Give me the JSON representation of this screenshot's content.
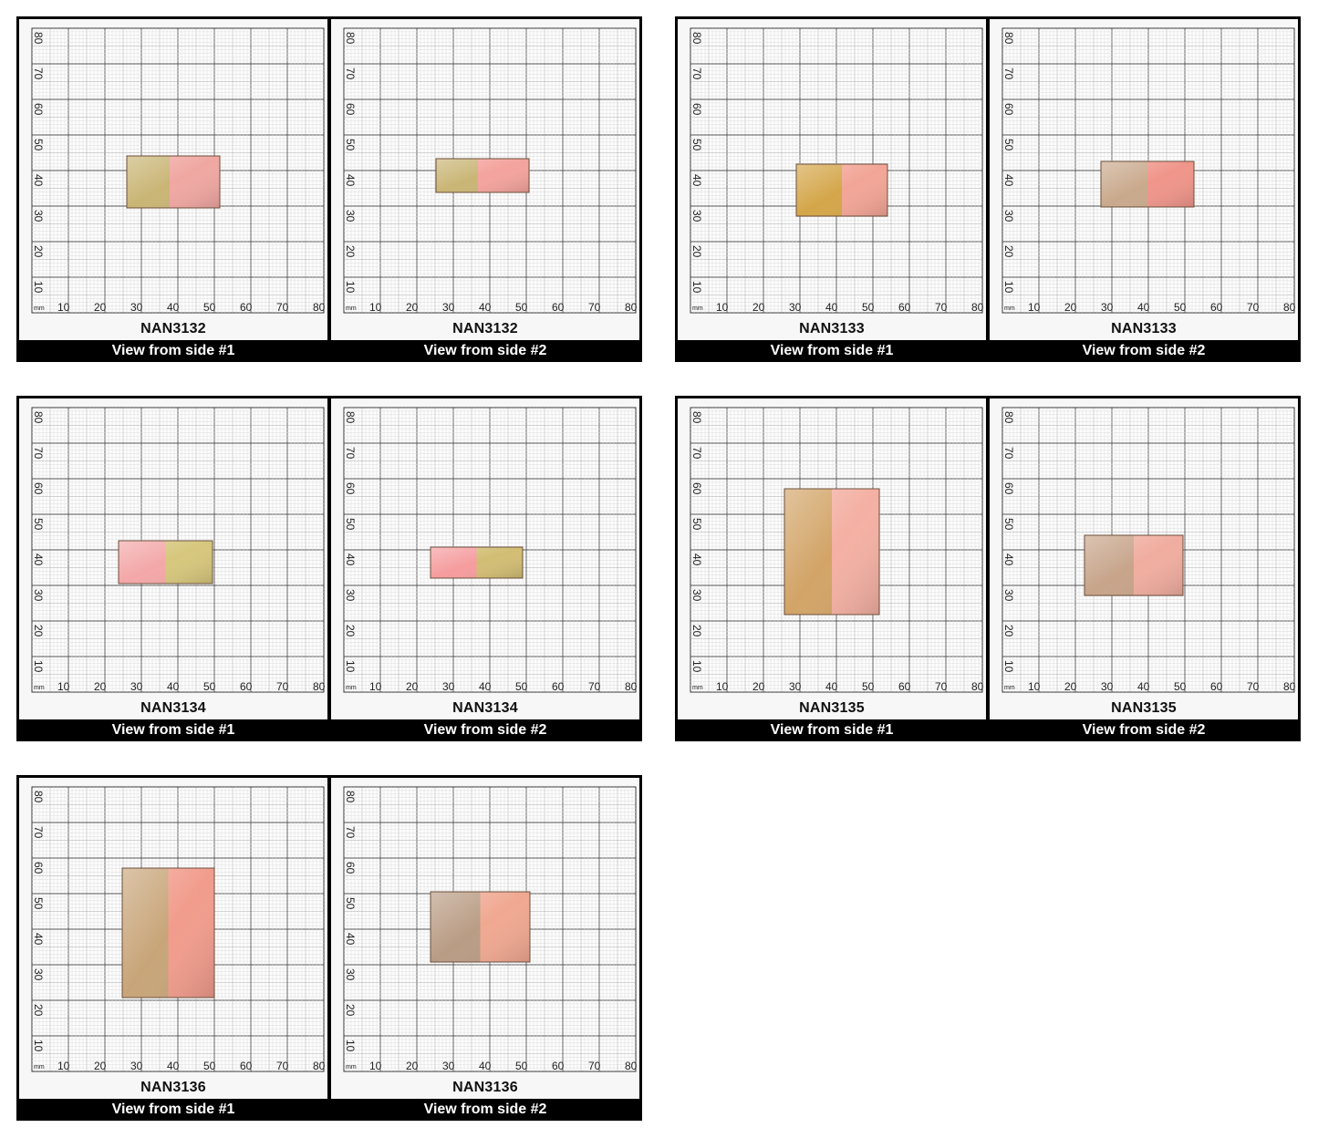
{
  "ruler": {
    "unit": "mm",
    "x_ticks": [
      "10",
      "20",
      "30",
      "40",
      "50",
      "60",
      "70",
      "80"
    ],
    "y_ticks": [
      "10",
      "20",
      "30",
      "40",
      "50",
      "60",
      "70",
      "80"
    ]
  },
  "groups": [
    {
      "code": "NAN3132",
      "side1_caption": "View from side #1",
      "side2_caption": "View from side #2"
    },
    {
      "code": "NAN3133",
      "side1_caption": "View from side #1",
      "side2_caption": "View from side #2"
    },
    {
      "code": "NAN3134",
      "side1_caption": "View from side #1",
      "side2_caption": "View from side #2"
    },
    {
      "code": "NAN3135",
      "side1_caption": "View from side #1",
      "side2_caption": "View from side #2"
    },
    {
      "code": "NAN3136",
      "side1_caption": "View from side #1",
      "side2_caption": "View from side #2"
    }
  ]
}
